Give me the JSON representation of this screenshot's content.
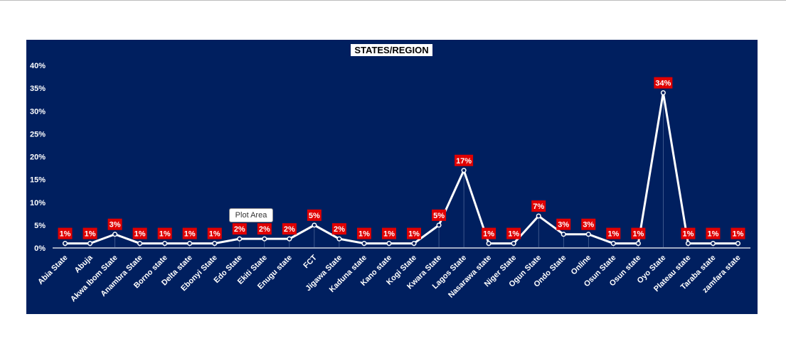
{
  "tooltip": "Plot Area",
  "colors": {
    "background": "#001f5f",
    "line": "#ffffff",
    "label_bg": "#e00000",
    "axis_text": "#ffffff"
  },
  "chart_data": {
    "type": "line",
    "title": "STATES/REGION",
    "xlabel": "",
    "ylabel": "",
    "ylim": [
      0,
      40
    ],
    "yticks": [
      "0%",
      "5%",
      "10%",
      "15%",
      "20%",
      "25%",
      "30%",
      "35%",
      "40%"
    ],
    "grid": false,
    "legend": "none",
    "categories": [
      "Abia State",
      "Abuja",
      "Akwa Ibom State",
      "Anambra State",
      "Borno state",
      "Delta state",
      "Ebonyi State",
      "Edo State",
      "Ekiti State",
      "Enugu state",
      "FCT",
      "Jigawa State",
      "Kaduna state",
      "Kano state",
      "Kogi State",
      "Kwara State",
      "Lagos State",
      "Nasarawa state",
      "Niger State",
      "Ogun State",
      "Ondo State",
      "Online",
      "Osun State",
      "Osun state",
      "Oyo State",
      "Plateau state",
      "Taraba state",
      "zamfara state"
    ],
    "values": [
      1,
      1,
      3,
      1,
      1,
      1,
      1,
      2,
      2,
      2,
      5,
      2,
      1,
      1,
      1,
      5,
      17,
      1,
      1,
      7,
      3,
      3,
      1,
      1,
      34,
      1,
      1,
      1
    ],
    "data_labels": [
      "1%",
      "1%",
      "3%",
      "1%",
      "1%",
      "1%",
      "1%",
      "2%",
      "2%",
      "2%",
      "5%",
      "2%",
      "1%",
      "1%",
      "1%",
      "5%",
      "17%",
      "1%",
      "1%",
      "7%",
      "3%",
      "3%",
      "1%",
      "1%",
      "34%",
      "1%",
      "1%",
      "1%"
    ]
  }
}
